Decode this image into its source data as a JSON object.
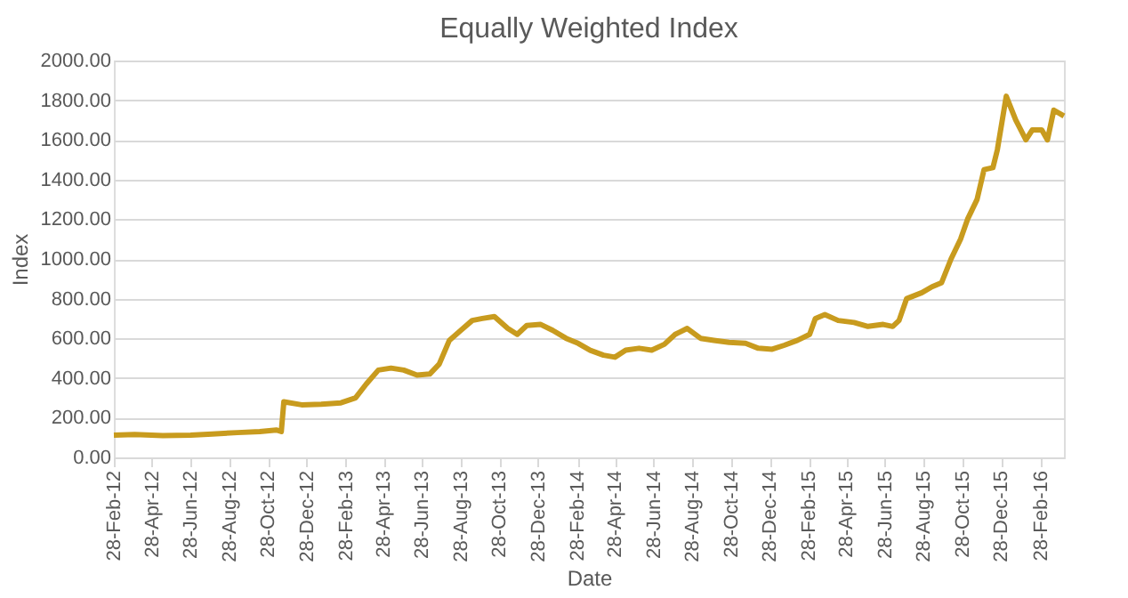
{
  "chart_data": {
    "type": "line",
    "title": "Equally Weighted Index",
    "xlabel": "Date",
    "ylabel": "Index",
    "x": [
      "2012-02-28",
      "2012-04-01",
      "2012-05-15",
      "2012-06-28",
      "2012-08-01",
      "2012-09-10",
      "2012-10-15",
      "2012-11-10",
      "2012-11-18",
      "2012-11-22",
      "2012-12-20",
      "2013-01-20",
      "2013-02-20",
      "2013-03-15",
      "2013-04-01",
      "2013-04-20",
      "2013-05-10",
      "2013-05-30",
      "2013-06-20",
      "2013-07-10",
      "2013-07-25",
      "2013-08-10",
      "2013-08-28",
      "2013-09-15",
      "2013-10-01",
      "2013-10-20",
      "2013-11-10",
      "2013-11-25",
      "2013-12-10",
      "2014-01-01",
      "2014-01-20",
      "2014-02-10",
      "2014-03-01",
      "2014-03-20",
      "2014-04-10",
      "2014-04-28",
      "2014-05-15",
      "2014-06-05",
      "2014-06-25",
      "2014-07-15",
      "2014-08-01",
      "2014-08-20",
      "2014-09-10",
      "2014-10-01",
      "2014-10-25",
      "2014-11-20",
      "2014-12-10",
      "2015-01-01",
      "2015-01-20",
      "2015-02-10",
      "2015-03-01",
      "2015-03-10",
      "2015-03-25",
      "2015-04-15",
      "2015-05-10",
      "2015-06-01",
      "2015-06-25",
      "2015-07-10",
      "2015-07-20",
      "2015-08-01",
      "2015-08-25",
      "2015-09-10",
      "2015-09-25",
      "2015-10-10",
      "2015-10-25",
      "2015-11-05",
      "2015-11-20",
      "2015-12-01",
      "2015-12-15",
      "2015-12-22",
      "2016-01-05",
      "2016-01-20",
      "2016-02-05",
      "2016-02-15",
      "2016-03-01",
      "2016-03-10",
      "2016-03-20",
      "2016-04-05"
    ],
    "series": [
      {
        "color": "#c89b1e",
        "values": [
          112,
          115,
          110,
          112,
          118,
          125,
          130,
          138,
          130,
          280,
          265,
          268,
          275,
          300,
          370,
          440,
          450,
          440,
          415,
          420,
          470,
          590,
          640,
          690,
          700,
          710,
          650,
          620,
          665,
          670,
          640,
          600,
          575,
          540,
          515,
          505,
          540,
          550,
          540,
          570,
          620,
          650,
          600,
          590,
          580,
          575,
          550,
          545,
          565,
          590,
          620,
          700,
          720,
          690,
          680,
          660,
          670,
          660,
          690,
          800,
          830,
          860,
          880,
          1000,
          1100,
          1200,
          1300,
          1450,
          1460,
          1550,
          1820,
          1700,
          1600,
          1650,
          1650,
          1600,
          1750,
          1720
        ]
      }
    ],
    "xlim": [
      "2012-02-28",
      "2016-04-05"
    ],
    "xticks": [
      {
        "value": "2012-02-28",
        "label": "28-Feb-12"
      },
      {
        "value": "2012-04-28",
        "label": "28-Apr-12"
      },
      {
        "value": "2012-06-28",
        "label": "28-Jun-12"
      },
      {
        "value": "2012-08-28",
        "label": "28-Aug-12"
      },
      {
        "value": "2012-10-28",
        "label": "28-Oct-12"
      },
      {
        "value": "2012-12-28",
        "label": "28-Dec-12"
      },
      {
        "value": "2013-02-28",
        "label": "28-Feb-13"
      },
      {
        "value": "2013-04-28",
        "label": "28-Apr-13"
      },
      {
        "value": "2013-06-28",
        "label": "28-Jun-13"
      },
      {
        "value": "2013-08-28",
        "label": "28-Aug-13"
      },
      {
        "value": "2013-10-28",
        "label": "28-Oct-13"
      },
      {
        "value": "2013-12-28",
        "label": "28-Dec-13"
      },
      {
        "value": "2014-02-28",
        "label": "28-Feb-14"
      },
      {
        "value": "2014-04-28",
        "label": "28-Apr-14"
      },
      {
        "value": "2014-06-28",
        "label": "28-Jun-14"
      },
      {
        "value": "2014-08-28",
        "label": "28-Aug-14"
      },
      {
        "value": "2014-10-28",
        "label": "28-Oct-14"
      },
      {
        "value": "2014-12-28",
        "label": "28-Dec-14"
      },
      {
        "value": "2015-02-28",
        "label": "28-Feb-15"
      },
      {
        "value": "2015-04-28",
        "label": "28-Apr-15"
      },
      {
        "value": "2015-06-28",
        "label": "28-Jun-15"
      },
      {
        "value": "2015-08-28",
        "label": "28-Aug-15"
      },
      {
        "value": "2015-10-28",
        "label": "28-Oct-15"
      },
      {
        "value": "2015-12-28",
        "label": "28-Dec-15"
      },
      {
        "value": "2016-02-28",
        "label": "28-Feb-16"
      }
    ],
    "ylim": [
      0,
      2000
    ],
    "yticks": [
      {
        "value": 0,
        "label": "0.00"
      },
      {
        "value": 200,
        "label": "200.00"
      },
      {
        "value": 400,
        "label": "400.00"
      },
      {
        "value": 600,
        "label": "600.00"
      },
      {
        "value": 800,
        "label": "800.00"
      },
      {
        "value": 1000,
        "label": "1000.00"
      },
      {
        "value": 1200,
        "label": "1200.00"
      },
      {
        "value": 1400,
        "label": "1400.00"
      },
      {
        "value": 1600,
        "label": "1600.00"
      },
      {
        "value": 1800,
        "label": "1800.00"
      },
      {
        "value": 2000,
        "label": "2000.00"
      }
    ],
    "grid": "y",
    "legend": false,
    "marker": "none",
    "line_style": "solid"
  }
}
